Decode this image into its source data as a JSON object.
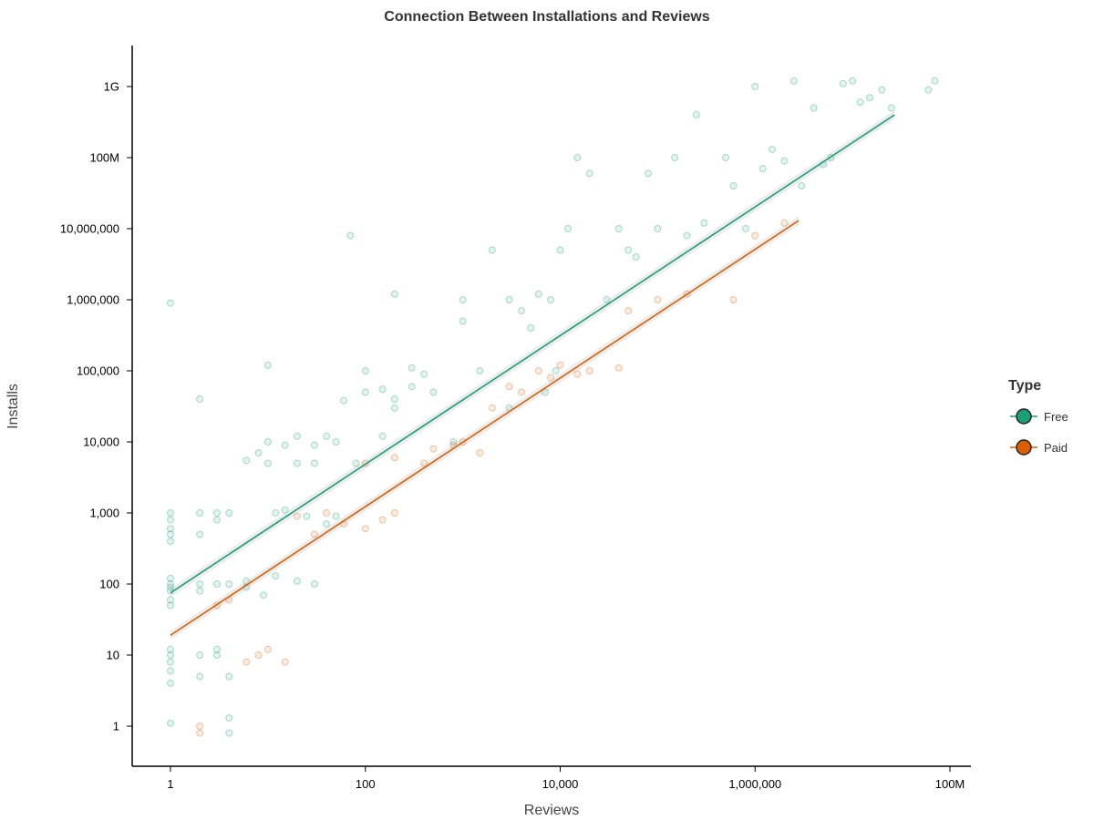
{
  "chart_data": {
    "type": "scatter",
    "title": "Connection Between Installations and Reviews",
    "xlabel": "Reviews",
    "ylabel": "Installs",
    "x_scale": "log",
    "y_scale": "log",
    "xlim": [
      0.5,
      150000000
    ],
    "ylim": [
      0.32,
      3000000000
    ],
    "x_ticks": [
      {
        "value": 1,
        "label": "1"
      },
      {
        "value": 100,
        "label": "100"
      },
      {
        "value": 10000,
        "label": "10,000"
      },
      {
        "value": 1000000,
        "label": "1,000,000"
      },
      {
        "value": 100000000,
        "label": "100M"
      }
    ],
    "y_ticks": [
      {
        "value": 1,
        "label": "1"
      },
      {
        "value": 10,
        "label": "10"
      },
      {
        "value": 100,
        "label": "100"
      },
      {
        "value": 1000,
        "label": "1,000"
      },
      {
        "value": 10000,
        "label": "10,000"
      },
      {
        "value": 100000,
        "label": "100,000"
      },
      {
        "value": 1000000,
        "label": "1,000,000"
      },
      {
        "value": 10000000,
        "label": "10,000,000"
      },
      {
        "value": 100000000,
        "label": "100M"
      },
      {
        "value": 1000000000,
        "label": "1G"
      }
    ],
    "grid": false,
    "legend": {
      "title": "Type",
      "position": "right"
    },
    "series": [
      {
        "name": "Free",
        "color": "#1b9e77",
        "marker_opacity": 0.12,
        "points": [
          [
            1,
            1.1
          ],
          [
            1,
            900000
          ],
          [
            1,
            10
          ],
          [
            1,
            12
          ],
          [
            1,
            8
          ],
          [
            1,
            6
          ],
          [
            1,
            4
          ],
          [
            1,
            100
          ],
          [
            1,
            120
          ],
          [
            1,
            90
          ],
          [
            1,
            80
          ],
          [
            1,
            60
          ],
          [
            1,
            50
          ],
          [
            1,
            1000
          ],
          [
            1,
            800
          ],
          [
            1,
            600
          ],
          [
            1,
            500
          ],
          [
            1,
            400
          ],
          [
            2,
            1000
          ],
          [
            2,
            500
          ],
          [
            2,
            100
          ],
          [
            2,
            80
          ],
          [
            2,
            10
          ],
          [
            2,
            5
          ],
          [
            2,
            40000
          ],
          [
            3,
            1000
          ],
          [
            3,
            800
          ],
          [
            3,
            100
          ],
          [
            3,
            10
          ],
          [
            3,
            12
          ],
          [
            4,
            1.3
          ],
          [
            4,
            0.8
          ],
          [
            4,
            100
          ],
          [
            4,
            1000
          ],
          [
            4,
            5
          ],
          [
            6,
            5500
          ],
          [
            8,
            7000
          ],
          [
            10,
            120000
          ],
          [
            10,
            5000
          ],
          [
            10,
            10000
          ],
          [
            12,
            1000
          ],
          [
            15,
            9000
          ],
          [
            20,
            5000
          ],
          [
            20,
            12000
          ],
          [
            30,
            9000
          ],
          [
            30,
            5000
          ],
          [
            40,
            12000
          ],
          [
            50,
            10000
          ],
          [
            60,
            38000
          ],
          [
            70,
            8000000
          ],
          [
            100,
            100000
          ],
          [
            100,
            50000
          ],
          [
            150,
            55000
          ],
          [
            200,
            40000
          ],
          [
            200,
            1200000
          ],
          [
            300,
            110000
          ],
          [
            300,
            60000
          ],
          [
            400,
            90000
          ],
          [
            500,
            50000
          ],
          [
            800,
            10000
          ],
          [
            1000,
            1000000
          ],
          [
            1000,
            500000
          ],
          [
            1500,
            100000
          ],
          [
            2000,
            5000000
          ],
          [
            3000,
            1000000
          ],
          [
            4000,
            700000
          ],
          [
            5000,
            400000
          ],
          [
            6000,
            1200000
          ],
          [
            8000,
            1000000
          ],
          [
            10000,
            5000000
          ],
          [
            12000,
            10000000
          ],
          [
            15000,
            100000000
          ],
          [
            20000,
            60000000
          ],
          [
            30000,
            1000000
          ],
          [
            40000,
            10000000
          ],
          [
            50000,
            5000000
          ],
          [
            60000,
            4000000
          ],
          [
            80000,
            60000000
          ],
          [
            100000,
            10000000
          ],
          [
            150000,
            100000000
          ],
          [
            200000,
            8000000
          ],
          [
            250000,
            400000000
          ],
          [
            300000,
            12000000
          ],
          [
            500000,
            100000000
          ],
          [
            600000,
            40000000
          ],
          [
            800000,
            10000000
          ],
          [
            1000000,
            1000000000
          ],
          [
            1200000,
            70000000
          ],
          [
            1500000,
            130000000
          ],
          [
            2000000,
            90000000
          ],
          [
            2500000,
            1200000000
          ],
          [
            3000000,
            40000000
          ],
          [
            4000000,
            500000000
          ],
          [
            5000000,
            80000000
          ],
          [
            6000000,
            100000000
          ],
          [
            8000000,
            1100000000
          ],
          [
            10000000,
            1200000000
          ],
          [
            12000000,
            600000000
          ],
          [
            15000000,
            700000000
          ],
          [
            20000000,
            900000000
          ],
          [
            25000000,
            500000000
          ],
          [
            60000000,
            900000000
          ],
          [
            70000000,
            1200000000
          ],
          [
            9000,
            100000
          ],
          [
            7000,
            50000
          ],
          [
            3000,
            30000
          ],
          [
            200,
            30000
          ],
          [
            150,
            12000
          ],
          [
            80,
            5000
          ],
          [
            40,
            700
          ],
          [
            25,
            900
          ],
          [
            15,
            1100
          ],
          [
            6,
            110
          ],
          [
            6,
            90
          ],
          [
            9,
            70
          ],
          [
            12,
            130
          ],
          [
            20,
            110
          ],
          [
            30,
            100
          ],
          [
            50,
            900
          ]
        ],
        "trend": [
          [
            1,
            75
          ],
          [
            27000000,
            400000000
          ]
        ]
      },
      {
        "name": "Paid",
        "color": "#d95f02",
        "marker_opacity": 0.12,
        "points": [
          [
            2,
            1
          ],
          [
            2,
            0.8
          ],
          [
            3,
            50
          ],
          [
            4,
            60
          ],
          [
            6,
            8
          ],
          [
            8,
            10
          ],
          [
            10,
            12
          ],
          [
            15,
            8
          ],
          [
            20,
            900
          ],
          [
            30,
            500
          ],
          [
            40,
            1000
          ],
          [
            60,
            700
          ],
          [
            100,
            600
          ],
          [
            150,
            800
          ],
          [
            200,
            1000
          ],
          [
            100,
            5000
          ],
          [
            200,
            6000
          ],
          [
            400,
            5000
          ],
          [
            500,
            8000
          ],
          [
            800,
            9000
          ],
          [
            1000,
            10000
          ],
          [
            1500,
            7000
          ],
          [
            2000,
            30000
          ],
          [
            3000,
            60000
          ],
          [
            4000,
            50000
          ],
          [
            6000,
            100000
          ],
          [
            8000,
            80000
          ],
          [
            10000,
            120000
          ],
          [
            15000,
            90000
          ],
          [
            20000,
            100000
          ],
          [
            40000,
            110000
          ],
          [
            50000,
            700000
          ],
          [
            100000,
            1000000
          ],
          [
            200000,
            1200000
          ],
          [
            600000,
            1000000
          ],
          [
            1000000,
            8000000
          ],
          [
            2000000,
            12000000
          ]
        ],
        "trend": [
          [
            1,
            19
          ],
          [
            2800000,
            13000000
          ]
        ]
      }
    ]
  }
}
